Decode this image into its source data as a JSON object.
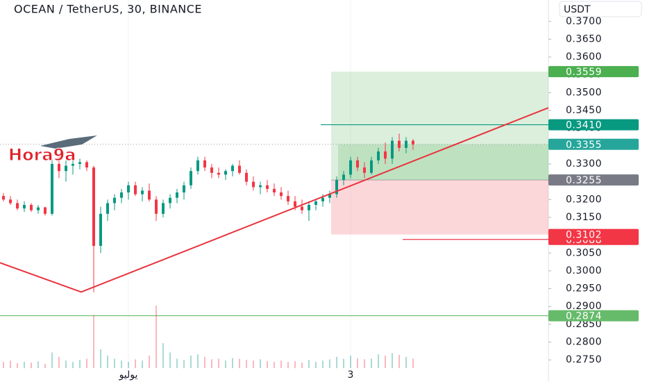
{
  "chart_data": {
    "type": "candlestick",
    "title": "OCEAN / TetherUS, 30, BINANCE",
    "price_axis_unit": "USDT",
    "watermark": "Hora9a",
    "up_color": "#089981",
    "down_color": "#f23645",
    "categories": [
      null,
      null,
      null,
      null,
      null,
      null,
      null,
      null,
      null,
      null,
      null,
      null,
      null,
      null,
      null,
      null,
      null,
      null,
      "يوليو",
      null,
      null,
      null,
      null,
      null,
      null,
      null,
      null,
      null,
      null,
      null,
      null,
      null,
      null,
      null,
      null,
      null,
      null,
      null,
      null,
      null,
      null,
      null,
      null,
      null,
      null,
      null,
      null,
      null,
      null,
      null,
      "3",
      null,
      null,
      null,
      null,
      null,
      null,
      null,
      null,
      null
    ],
    "open": [
      0.321,
      0.32,
      0.319,
      0.3175,
      0.3185,
      0.317,
      0.3178,
      0.316,
      0.33,
      0.328,
      0.3295,
      0.33,
      0.3305,
      0.329,
      0.307,
      0.316,
      0.319,
      0.3205,
      0.322,
      0.324,
      0.3215,
      0.3225,
      0.32,
      0.316,
      0.319,
      0.3205,
      0.322,
      0.324,
      0.328,
      0.331,
      0.329,
      0.3275,
      0.327,
      0.328,
      0.3295,
      0.3275,
      0.325,
      0.3235,
      0.324,
      0.323,
      0.322,
      0.321,
      0.3195,
      0.318,
      0.317,
      0.3185,
      0.3195,
      0.3205,
      0.3215,
      0.3255,
      0.327,
      0.331,
      0.329,
      0.3275,
      0.331,
      0.3335,
      0.3315,
      0.3365,
      0.3345,
      0.3365
    ],
    "high": [
      0.3218,
      0.321,
      0.32,
      0.3195,
      0.319,
      0.3185,
      0.318,
      0.3315,
      0.332,
      0.331,
      0.331,
      0.3315,
      0.331,
      0.3295,
      0.318,
      0.32,
      0.3215,
      0.323,
      0.325,
      0.325,
      0.3235,
      0.3245,
      0.321,
      0.32,
      0.3215,
      0.323,
      0.325,
      0.329,
      0.332,
      0.332,
      0.33,
      0.329,
      0.3285,
      0.33,
      0.331,
      0.3285,
      0.3265,
      0.325,
      0.3255,
      0.3245,
      0.3235,
      0.3225,
      0.321,
      0.32,
      0.3195,
      0.32,
      0.3215,
      0.3225,
      0.3265,
      0.328,
      0.332,
      0.332,
      0.3305,
      0.332,
      0.3345,
      0.336,
      0.3375,
      0.3385,
      0.3375,
      0.337
    ],
    "low": [
      0.3195,
      0.3185,
      0.317,
      0.3165,
      0.3165,
      0.316,
      0.3155,
      0.3155,
      0.326,
      0.325,
      0.327,
      0.3285,
      0.328,
      0.294,
      0.305,
      0.314,
      0.317,
      0.319,
      0.32,
      0.321,
      0.3195,
      0.3195,
      0.314,
      0.315,
      0.3175,
      0.319,
      0.32,
      0.323,
      0.327,
      0.328,
      0.326,
      0.326,
      0.3255,
      0.3265,
      0.327,
      0.324,
      0.3225,
      0.3215,
      0.322,
      0.321,
      0.32,
      0.3185,
      0.317,
      0.316,
      0.314,
      0.317,
      0.318,
      0.319,
      0.3205,
      0.324,
      0.326,
      0.328,
      0.326,
      0.327,
      0.33,
      0.33,
      0.33,
      0.3335,
      0.333,
      0.334
    ],
    "close": [
      0.32,
      0.319,
      0.3175,
      0.3185,
      0.317,
      0.3178,
      0.316,
      0.33,
      0.328,
      0.3295,
      0.33,
      0.3305,
      0.329,
      0.307,
      0.316,
      0.319,
      0.3205,
      0.322,
      0.324,
      0.3215,
      0.3225,
      0.32,
      0.316,
      0.319,
      0.3205,
      0.322,
      0.324,
      0.328,
      0.331,
      0.329,
      0.3275,
      0.327,
      0.328,
      0.3295,
      0.3275,
      0.325,
      0.3235,
      0.324,
      0.323,
      0.322,
      0.321,
      0.3195,
      0.318,
      0.317,
      0.3185,
      0.3195,
      0.3205,
      0.3215,
      0.3255,
      0.327,
      0.331,
      0.329,
      0.3275,
      0.331,
      0.3335,
      0.3315,
      0.3365,
      0.3345,
      0.3365,
      0.3355
    ],
    "volume": [
      1,
      1.2,
      0.8,
      1,
      0.9,
      1.1,
      0.7,
      2.5,
      1.8,
      1.2,
      1,
      1.3,
      1.5,
      8.5,
      3,
      2,
      1.5,
      1.2,
      1,
      1.4,
      1.2,
      2,
      10,
      4,
      2.5,
      1.5,
      1.3,
      2,
      2.2,
      1.8,
      1.4,
      1.5,
      1.2,
      1.6,
      1.5,
      1.3,
      1.2,
      1.4,
      1.1,
      1,
      1.2,
      1,
      1.1,
      0.9,
      1.3,
      1,
      1.2,
      1.4,
      1.8,
      1.5,
      2,
      1.6,
      1.4,
      1.5,
      2.2,
      2,
      2.4,
      2.1,
      1.8,
      1.5
    ],
    "ylim": [
      0.2727,
      0.376
    ],
    "yticks": [
      {
        "value": 0.275,
        "label": "0.2750"
      },
      {
        "value": 0.28,
        "label": "0.2800"
      },
      {
        "value": 0.285,
        "label": "0.2850"
      },
      {
        "value": 0.29,
        "label": "0.2900"
      },
      {
        "value": 0.295,
        "label": "0.2950"
      },
      {
        "value": 0.3,
        "label": "0.3000"
      },
      {
        "value": 0.305,
        "label": "0.3050"
      },
      {
        "value": 0.31,
        "label": "0.3100"
      },
      {
        "value": 0.315,
        "label": "0.3150"
      },
      {
        "value": 0.32,
        "label": "0.3200"
      },
      {
        "value": 0.325,
        "label": "0.3250"
      },
      {
        "value": 0.33,
        "label": "0.3300"
      },
      {
        "value": 0.335,
        "label": "0.3350"
      },
      {
        "value": 0.34,
        "label": "0.3400"
      },
      {
        "value": 0.345,
        "label": "0.3450"
      },
      {
        "value": 0.35,
        "label": "0.3500"
      },
      {
        "value": 0.355,
        "label": "0.3550"
      },
      {
        "value": 0.36,
        "label": "0.3600"
      },
      {
        "value": 0.365,
        "label": "0.3650"
      },
      {
        "value": 0.37,
        "label": "0.3700"
      }
    ],
    "trendline": {
      "x": [
        -0.5,
        11.2,
        78.5
      ],
      "y": [
        0.30226,
        0.29406,
        0.34576
      ],
      "color": "#e8323c"
    },
    "position": {
      "x": [
        47.2,
        78.5
      ],
      "entry": 0.3255,
      "target": 0.3559,
      "stop": 0.3102,
      "entry_color": "#787b86",
      "target_color": "#4caf50",
      "stop_color": "#f23645"
    },
    "hlines": [
      {
        "value": 0.341,
        "label": "0.3410",
        "start": 45.7,
        "color": "#089981"
      },
      {
        "value": 0.3088,
        "start": 57.5,
        "color": "#f23645"
      },
      {
        "value": 0.2874,
        "start": -0.5,
        "color": "#66bb6a"
      }
    ]
  }
}
